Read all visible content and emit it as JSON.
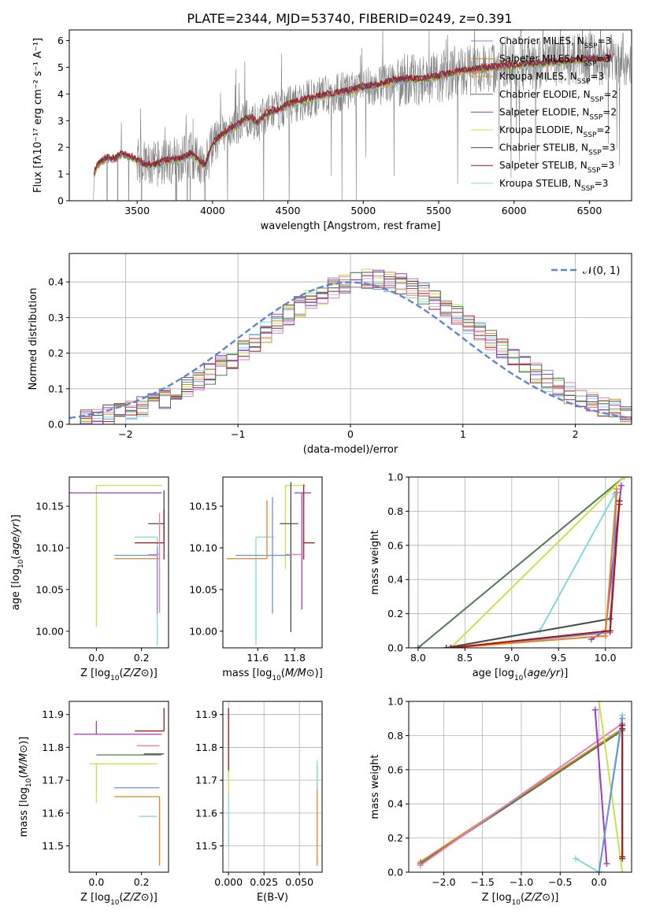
{
  "figure": {
    "title": "PLATE=2344, MJD=53740, FIBERID=0249, z=0.391"
  },
  "palette": {
    "chabrier_miles": "#6f8fdc",
    "salpeter_miles": "#e1861f",
    "kroupa_miles": "#c9a12d",
    "chabrier_elodie": "#4f7a55",
    "salpeter_elodie": "#a43ab8",
    "kroupa_elodie": "#c7e24a",
    "chabrier_stelib": "#4b4b4b",
    "salpeter_stelib": "#b31212",
    "kroupa_stelib": "#80d8df",
    "extra_pink": "#e47fb5",
    "data_gray": "#808080",
    "normal_curve": "#5b86d6",
    "grid": "#b0b0b0"
  },
  "chart_data": [
    {
      "id": "spectrum",
      "type": "line",
      "xlabel": "wavelength [Angstrom, rest frame]",
      "ylabel": "Flux [fλ10⁻¹⁷ erg cm⁻² s⁻¹ A⁻¹]",
      "xlim": [
        3050,
        6780
      ],
      "ylim": [
        0,
        6.4
      ],
      "xticks": [
        3500,
        4000,
        4500,
        5000,
        5500,
        6000,
        6500
      ],
      "yticks": [
        0,
        1,
        2,
        3,
        4,
        5,
        6
      ],
      "grid": false,
      "legend_position": "top-right",
      "legend": [
        {
          "key": "chabrier_miles",
          "name": "Chabrier MILES, N",
          "sub": "SSP",
          "suffix": "=3"
        },
        {
          "key": "salpeter_miles",
          "name": "Salpeter MILES, N",
          "sub": "SSP",
          "suffix": "=3"
        },
        {
          "key": "kroupa_miles",
          "name": "Kroupa MILES, N",
          "sub": "SSP",
          "suffix": "=3"
        },
        {
          "key": "chabrier_elodie",
          "name": "Chabrier ELODIE, N",
          "sub": "SSP",
          "suffix": "=2"
        },
        {
          "key": "salpeter_elodie",
          "name": "Salpeter ELODIE, N",
          "sub": "SSP",
          "suffix": "=2"
        },
        {
          "key": "kroupa_elodie",
          "name": "Kroupa ELODIE, N",
          "sub": "SSP",
          "suffix": "=2"
        },
        {
          "key": "chabrier_stelib",
          "name": "Chabrier STELIB, N",
          "sub": "SSP",
          "suffix": "=3"
        },
        {
          "key": "salpeter_stelib",
          "name": "Salpeter STELIB, N",
          "sub": "SSP",
          "suffix": "=3"
        },
        {
          "key": "kroupa_stelib",
          "name": "Kroupa STELIB, N",
          "sub": "SSP",
          "suffix": "=3"
        }
      ],
      "model_continuum": {
        "x": [
          3215,
          3240,
          3260,
          3300,
          3350,
          3400,
          3450,
          3500,
          3550,
          3600,
          3650,
          3700,
          3750,
          3800,
          3850,
          3900,
          3950,
          4000,
          4050,
          4100,
          4150,
          4200,
          4250,
          4300,
          4350,
          4400,
          4450,
          4500,
          4600,
          4700,
          4800,
          4900,
          5000,
          5100,
          5200,
          5300,
          5400,
          5500,
          5600,
          5700,
          5800,
          5900,
          6000,
          6100,
          6200,
          6300,
          6400,
          6500,
          6600,
          6650
        ],
        "y": [
          1.05,
          1.35,
          1.45,
          1.6,
          1.55,
          1.75,
          1.65,
          1.5,
          1.35,
          1.3,
          1.4,
          1.5,
          1.55,
          1.6,
          1.75,
          1.55,
          1.3,
          2.1,
          2.4,
          2.6,
          2.75,
          3.0,
          3.1,
          2.9,
          3.2,
          3.35,
          3.4,
          3.6,
          3.75,
          3.9,
          4.0,
          4.1,
          4.25,
          4.3,
          4.5,
          4.55,
          4.55,
          4.65,
          4.8,
          4.9,
          4.95,
          5.0,
          5.05,
          5.1,
          5.15,
          5.2,
          5.25,
          5.3,
          5.3,
          5.3
        ]
      }
    },
    {
      "id": "residuals",
      "type": "step",
      "xlabel": "(data-model)/error",
      "ylabel": "Normed distribution",
      "xlim": [
        -2.5,
        2.5
      ],
      "ylim": [
        0,
        0.48
      ],
      "xticks": [
        -2,
        -1,
        0,
        1,
        2
      ],
      "yticks": [
        0.0,
        0.1,
        0.2,
        0.3,
        0.4
      ],
      "grid": true,
      "legend_position": "top-right",
      "legend_label": "𝒩(0, 1)",
      "bin_edges_start": -2.5,
      "bin_width": 0.1
    },
    {
      "id": "age_vs_z",
      "type": "errorbar",
      "xlabel": "Z [log10(Z/Z⊙)]",
      "ylabel": "age  [log10(age/yr)]",
      "xlim": [
        -0.12,
        0.32
      ],
      "ylim": [
        9.98,
        10.185
      ],
      "xticks": [
        0.0,
        0.2
      ],
      "yticks": [
        10.0,
        10.05,
        10.1,
        10.15
      ],
      "grid": false,
      "points": [
        {
          "key": "kroupa_elodie",
          "x": 0.0,
          "y": 10.175,
          "xerr": [
            0.0,
            0.29
          ],
          "yerr": [
            0.17,
            0.0
          ]
        },
        {
          "key": "salpeter_elodie",
          "x": 0.0,
          "y": 10.166,
          "xerr": [
            0.12,
            0.29
          ],
          "yerr": [
            0.0,
            0.0
          ]
        },
        {
          "key": "chabrier_stelib",
          "x": 0.3,
          "y": 10.129,
          "xerr": [
            0.07,
            0.0
          ],
          "yerr": [
            0.02,
            0.04
          ]
        },
        {
          "key": "kroupa_stelib",
          "x": 0.27,
          "y": 10.113,
          "xerr": [
            0.1,
            0.0
          ],
          "yerr": [
            0.13,
            0.0
          ]
        },
        {
          "key": "salpeter_stelib",
          "x": 0.3,
          "y": 10.106,
          "xerr": [
            0.13,
            0.0
          ],
          "yerr": [
            0.02,
            0.04
          ]
        },
        {
          "key": "chabrier_miles",
          "x": 0.27,
          "y": 10.091,
          "xerr": [
            0.19,
            0.0
          ],
          "yerr": [
            0.07,
            0.01
          ]
        },
        {
          "key": "extra_pink",
          "x": 0.28,
          "y": 10.092,
          "xerr": [
            0.05,
            0.0
          ],
          "yerr": [
            0.07,
            0.05
          ]
        },
        {
          "key": "salpeter_miles",
          "x": 0.28,
          "y": 10.087,
          "xerr": [
            0.2,
            0.0
          ],
          "yerr": [
            0.0,
            0.0
          ]
        }
      ]
    },
    {
      "id": "age_vs_mass",
      "type": "errorbar",
      "xlabel": "mass [log10(M/M⊙)]",
      "ylabel": "",
      "xlim": [
        11.41,
        11.95
      ],
      "ylim": [
        9.98,
        10.185
      ],
      "xticks": [
        11.6,
        11.8
      ],
      "yticks": [
        10.0,
        10.05,
        10.1,
        10.15
      ],
      "grid": false,
      "points": [
        {
          "key": "kroupa_elodie",
          "x": 11.75,
          "y": 10.175,
          "xerr": [
            0.0,
            0.11
          ],
          "yerr": [
            0.1,
            0.0
          ]
        },
        {
          "key": "salpeter_elodie",
          "x": 11.84,
          "y": 10.166,
          "xerr": [
            0.04,
            0.05
          ],
          "yerr": [
            0.14,
            0.0
          ]
        },
        {
          "key": "chabrier_stelib",
          "x": 11.78,
          "y": 10.129,
          "xerr": [
            0.06,
            0.04
          ],
          "yerr": [
            0.13,
            0.05
          ]
        },
        {
          "key": "kroupa_stelib",
          "x": 11.59,
          "y": 10.113,
          "xerr": [
            0.0,
            0.1
          ],
          "yerr": [
            0.13,
            0.0
          ]
        },
        {
          "key": "salpeter_stelib",
          "x": 11.85,
          "y": 10.106,
          "xerr": [
            0.0,
            0.06
          ],
          "yerr": [
            0.02,
            0.07
          ]
        },
        {
          "key": "chabrier_miles",
          "x": 11.68,
          "y": 10.091,
          "xerr": [
            0.2,
            0.1
          ],
          "yerr": [
            0.07,
            0.07
          ]
        },
        {
          "key": "extra_pink",
          "x": 11.8,
          "y": 10.092,
          "xerr": [
            0.05,
            0.05
          ],
          "yerr": [
            0.0,
            0.0
          ]
        },
        {
          "key": "salpeter_miles",
          "x": 11.65,
          "y": 10.087,
          "xerr": [
            0.22,
            0.0
          ],
          "yerr": [
            0.0,
            0.07
          ]
        }
      ]
    },
    {
      "id": "weight_vs_age",
      "type": "line",
      "xlabel": "age  [log10(age/yr)]",
      "ylabel": "mass weight",
      "xlim": [
        7.9,
        10.28
      ],
      "ylim": [
        0,
        1
      ],
      "xticks": [
        8.0,
        8.5,
        9.0,
        9.5,
        10.0
      ],
      "yticks": [
        0.0,
        0.2,
        0.4,
        0.6,
        0.8,
        1.0
      ],
      "grid": true,
      "series": [
        {
          "key": "chabrier_elodie",
          "x": [
            8.0,
            10.2
          ],
          "y": [
            0.0,
            1.0
          ]
        },
        {
          "key": "kroupa_elodie",
          "x": [
            8.35,
            10.2
          ],
          "y": [
            0.0,
            1.0
          ]
        },
        {
          "key": "kroupa_stelib",
          "x": [
            8.3,
            9.3,
            10.1
          ],
          "y": [
            0.0,
            0.1,
            0.9
          ]
        },
        {
          "key": "salpeter_elodie",
          "x": [
            9.85,
            10.0,
            10.17
          ],
          "y": [
            0.05,
            0.1,
            0.95
          ]
        },
        {
          "key": "chabrier_stelib",
          "x": [
            8.3,
            10.05,
            10.15
          ],
          "y": [
            0.0,
            0.17,
            0.84
          ]
        },
        {
          "key": "chabrier_miles",
          "x": [
            8.35,
            10.05,
            10.12
          ],
          "y": [
            0.0,
            0.09,
            0.91
          ]
        },
        {
          "key": "salpeter_miles",
          "x": [
            8.35,
            10.0,
            10.12
          ],
          "y": [
            0.0,
            0.07,
            0.93
          ]
        },
        {
          "key": "salpeter_stelib",
          "x": [
            8.35,
            10.05,
            10.15
          ],
          "y": [
            0.0,
            0.1,
            0.86
          ]
        }
      ]
    },
    {
      "id": "mass_vs_z",
      "type": "errorbar",
      "xlabel": "Z [log10(Z/Z⊙)]",
      "ylabel": "mass [log10(M/M⊙)]",
      "xlim": [
        -0.12,
        0.32
      ],
      "ylim": [
        11.42,
        11.94
      ],
      "xticks": [
        0.0,
        0.2
      ],
      "yticks": [
        11.5,
        11.6,
        11.7,
        11.8,
        11.9
      ],
      "grid": false,
      "points": [
        {
          "key": "salpeter_stelib",
          "x": 0.3,
          "y": 11.85,
          "xerr": [
            0.13,
            0.0
          ],
          "yerr": [
            0.0,
            0.07
          ]
        },
        {
          "key": "salpeter_elodie",
          "x": 0.0,
          "y": 11.84,
          "xerr": [
            0.1,
            0.29
          ],
          "yerr": [
            0.0,
            0.04
          ]
        },
        {
          "key": "extra_pink",
          "x": 0.28,
          "y": 11.805,
          "xerr": [
            0.1,
            0.0
          ],
          "yerr": [
            0.0,
            0.0
          ]
        },
        {
          "key": "chabrier_stelib",
          "x": 0.3,
          "y": 11.78,
          "xerr": [
            0.09,
            0.0
          ],
          "yerr": [
            0.0,
            0.0
          ]
        },
        {
          "key": "chabrier_elodie",
          "x": 0.0,
          "y": 11.777,
          "xerr": [
            0.0,
            0.29
          ],
          "yerr": [
            0.0,
            0.0
          ]
        },
        {
          "key": "kroupa_elodie",
          "x": 0.0,
          "y": 11.75,
          "xerr": [
            0.03,
            0.27
          ],
          "yerr": [
            0.12,
            0.0
          ]
        },
        {
          "key": "chabrier_miles",
          "x": 0.28,
          "y": 11.677,
          "xerr": [
            0.2,
            0.0
          ],
          "yerr": [
            0.0,
            0.0
          ]
        },
        {
          "key": "salpeter_miles",
          "x": 0.28,
          "y": 11.65,
          "xerr": [
            0.2,
            0.0
          ],
          "yerr": [
            0.21,
            0.0
          ]
        },
        {
          "key": "kroupa_stelib",
          "x": 0.27,
          "y": 11.59,
          "xerr": [
            0.08,
            0.0
          ],
          "yerr": [
            0.0,
            0.0
          ]
        }
      ]
    },
    {
      "id": "mass_vs_ebv",
      "type": "errorbar",
      "xlabel": "E(B-V)",
      "ylabel": "",
      "xlim": [
        -0.004,
        0.066
      ],
      "ylim": [
        11.42,
        11.94
      ],
      "xticks": [
        0.0,
        0.025,
        0.05
      ],
      "yticks": [
        11.5,
        11.6,
        11.7,
        11.8,
        11.9
      ],
      "grid": true,
      "points": [
        {
          "key": "salpeter_stelib",
          "x": 0.0,
          "y": 11.85,
          "xerr": [
            0.0,
            0.0
          ],
          "yerr": [
            0.13,
            0.07
          ]
        },
        {
          "key": "kroupa_elodie",
          "x": 0.0,
          "y": 11.7,
          "xerr": [
            0.0,
            0.0
          ],
          "yerr": [
            0.05,
            0.03
          ]
        },
        {
          "key": "kroupa_stelib",
          "x": 0.0,
          "y": 11.59,
          "xerr": [
            0.0,
            0.0
          ],
          "yerr": [
            0.09,
            0.07
          ]
        },
        {
          "key": "salpeter_miles",
          "x": 0.0625,
          "y": 11.6,
          "xerr": [
            0.0,
            0.0
          ],
          "yerr": [
            0.16,
            0.14
          ]
        },
        {
          "key": "kroupa_stelib",
          "x": 0.0625,
          "y": 11.7,
          "xerr": [
            0.0,
            0.0
          ],
          "yerr": [
            0.03,
            0.06
          ]
        }
      ]
    },
    {
      "id": "weight_vs_z",
      "type": "line",
      "xlabel": "Z [log10(Z/Z⊙)]",
      "ylabel": "mass weight",
      "xlim": [
        -2.45,
        0.42
      ],
      "ylim": [
        0,
        1
      ],
      "xticks": [
        -2.0,
        -1.5,
        -1.0,
        -0.5,
        0.0
      ],
      "yticks": [
        0.0,
        0.2,
        0.4,
        0.6,
        0.8,
        1.0
      ],
      "grid": true,
      "series": [
        {
          "key": "salpeter_miles",
          "x": [
            -2.3,
            0.3
          ],
          "y": [
            0.06,
            0.84
          ]
        },
        {
          "key": "chabrier_elodie",
          "x": [
            -2.3,
            0.3
          ],
          "y": [
            0.05,
            0.83
          ]
        },
        {
          "key": "extra_pink",
          "x": [
            -2.3,
            0.3
          ],
          "y": [
            0.04,
            0.87
          ]
        },
        {
          "key": "kroupa_elodie",
          "x": [
            0.0,
            0.3
          ],
          "y": [
            1.0,
            0.0
          ]
        },
        {
          "key": "salpeter_elodie",
          "x": [
            -0.05,
            0.1
          ],
          "y": [
            0.95,
            0.05
          ]
        },
        {
          "key": "kroupa_stelib",
          "x": [
            -0.3,
            0.0,
            0.3
          ],
          "y": [
            0.08,
            0.0,
            0.92
          ]
        },
        {
          "key": "chabrier_miles",
          "x": [
            0.0,
            0.3
          ],
          "y": [
            0.0,
            0.9
          ]
        },
        {
          "key": "chabrier_stelib",
          "x": [
            0.3,
            0.3
          ],
          "y": [
            0.08,
            0.84
          ]
        },
        {
          "key": "salpeter_stelib",
          "x": [
            0.3,
            0.3
          ],
          "y": [
            0.09,
            0.86
          ]
        }
      ]
    }
  ]
}
